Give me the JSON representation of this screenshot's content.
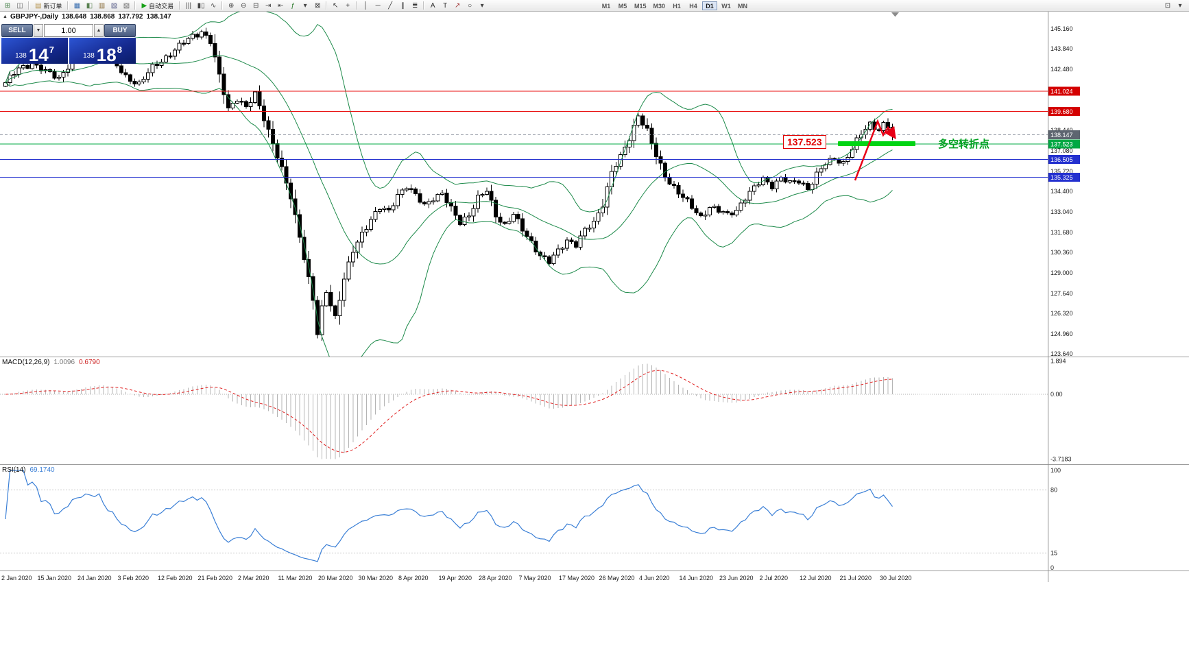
{
  "toolbar": {
    "items": [
      {
        "name": "new-chart-icon",
        "glyph": "⊞",
        "color": "#3f7d42"
      },
      {
        "name": "chart-profiles-icon",
        "glyph": "◫",
        "color": "#666666"
      },
      {
        "name": "sep"
      },
      {
        "name": "new-order-button",
        "glyph": "▤",
        "color": "#b5924a",
        "label": "新订单"
      },
      {
        "name": "sep"
      },
      {
        "name": "market-watch-icon",
        "glyph": "▦",
        "color": "#3a6fb0"
      },
      {
        "name": "data-window-icon",
        "glyph": "◧",
        "color": "#58804f"
      },
      {
        "name": "navigator-icon",
        "glyph": "▥",
        "color": "#8a6d3b"
      },
      {
        "name": "terminal-icon",
        "glyph": "▨",
        "color": "#5a5f8a"
      },
      {
        "name": "strategy-tester-icon",
        "glyph": "▧",
        "color": "#6a6a6a"
      },
      {
        "name": "sep"
      },
      {
        "name": "auto-trading-button",
        "glyph": "▶",
        "color": "#18a018",
        "label": "自动交易"
      },
      {
        "name": "sep"
      },
      {
        "name": "bars-chart-icon",
        "glyph": "|||",
        "color": "#444444"
      },
      {
        "name": "candles-chart-icon",
        "glyph": "▮▯",
        "color": "#444444"
      },
      {
        "name": "line-chart-icon",
        "glyph": "∿",
        "color": "#444444"
      },
      {
        "name": "sep"
      },
      {
        "name": "zoom-in-icon",
        "glyph": "⊕",
        "color": "#444444"
      },
      {
        "name": "zoom-out-icon",
        "glyph": "⊖",
        "color": "#444444"
      },
      {
        "name": "tile-windows-icon",
        "glyph": "⊟",
        "color": "#444444"
      },
      {
        "name": "auto-scroll-icon",
        "glyph": "⇥",
        "color": "#444444"
      },
      {
        "name": "chart-shift-icon",
        "glyph": "⇤",
        "color": "#444444"
      },
      {
        "name": "indicators-icon",
        "glyph": "ƒ",
        "color": "#2a7a2a"
      },
      {
        "name": "periods-dropdown-icon",
        "glyph": "▾",
        "color": "#444444"
      },
      {
        "name": "templates-icon",
        "glyph": "⊠",
        "color": "#444444"
      },
      {
        "name": "sep"
      },
      {
        "name": "cursor-icon",
        "glyph": "↖",
        "color": "#333333"
      },
      {
        "name": "crosshair-icon",
        "glyph": "+",
        "color": "#333333"
      },
      {
        "name": "sep"
      },
      {
        "name": "vertical-line-icon",
        "glyph": "│",
        "color": "#333333"
      },
      {
        "name": "horizontal-line-icon",
        "glyph": "─",
        "color": "#333333"
      },
      {
        "name": "trendline-icon",
        "glyph": "╱",
        "color": "#333333"
      },
      {
        "name": "equidistant-channel-icon",
        "glyph": "∥",
        "color": "#333333"
      },
      {
        "name": "fibonacci-icon",
        "glyph": "≣",
        "color": "#333333"
      },
      {
        "name": "sep"
      },
      {
        "name": "text-icon",
        "glyph": "A",
        "color": "#333333"
      },
      {
        "name": "text-label-icon",
        "glyph": "T",
        "color": "#333333"
      },
      {
        "name": "arrows-icon",
        "glyph": "↗",
        "color": "#a03030"
      },
      {
        "name": "shapes-icon",
        "glyph": "○",
        "color": "#333333"
      },
      {
        "name": "objects-dropdown-icon",
        "glyph": "▾",
        "color": "#444444"
      }
    ],
    "timeframes": [
      {
        "label": "M1",
        "active": false
      },
      {
        "label": "M5",
        "active": false
      },
      {
        "label": "M15",
        "active": false
      },
      {
        "label": "M30",
        "active": false
      },
      {
        "label": "H1",
        "active": false
      },
      {
        "label": "H4",
        "active": false
      },
      {
        "label": "D1",
        "active": true
      },
      {
        "label": "W1",
        "active": false
      },
      {
        "label": "MN",
        "active": false
      }
    ],
    "right_icons": [
      {
        "name": "fullscreen-icon",
        "glyph": "⊡",
        "color": "#444444"
      },
      {
        "name": "more-icon",
        "glyph": "▾",
        "color": "#444444"
      }
    ]
  },
  "chart_header": {
    "symbol": "GBPJPY-,Daily",
    "open": "138.648",
    "high": "138.868",
    "low": "137.792",
    "close": "138.147"
  },
  "one_click": {
    "collapse_glyph": "▲",
    "sell_label": "SELL",
    "buy_label": "BUY",
    "volume": "1.00",
    "spin_down_glyph": "▼",
    "spin_up_glyph": "▲",
    "price_prefix": "138",
    "sell_big": "14",
    "sell_sup": "7",
    "buy_big": "18",
    "buy_sup": "8"
  },
  "price_axis": {
    "plain_labels": [
      "145.160",
      "143.840",
      "142.480",
      "138.440",
      "137.080",
      "135.720",
      "134.400",
      "133.040",
      "131.680",
      "130.360",
      "129.000",
      "127.640",
      "126.320",
      "124.960",
      "123.640"
    ],
    "badges": [
      {
        "text": "141.024",
        "price": 141.024,
        "color": "#d40000"
      },
      {
        "text": "139.680",
        "price": 139.68,
        "color": "#d40000"
      },
      {
        "text": "138.147",
        "price": 138.147,
        "color": "#5d6570"
      },
      {
        "text": "137.523",
        "price": 137.523,
        "color": "#00a843"
      },
      {
        "text": "136.505",
        "price": 136.505,
        "color": "#2330cf"
      },
      {
        "text": "135.325",
        "price": 135.325,
        "color": "#2330cf"
      }
    ]
  },
  "levels": [
    {
      "price": 141.024,
      "color": "#e81010"
    },
    {
      "price": 139.68,
      "color": "#e81010"
    },
    {
      "price": 137.523,
      "color": "#00a843"
    },
    {
      "price": 136.505,
      "color": "#2330cf"
    },
    {
      "price": 135.325,
      "color": "#2330cf"
    }
  ],
  "bid_line": {
    "price": 138.147,
    "color": "#9aa0aa"
  },
  "annotations": {
    "price_box": "137.523",
    "turning_point": "多空转折点",
    "colors": {
      "box": "#e00000",
      "text": "#00a020",
      "bar": "#00d414",
      "arrow": "#e80016"
    }
  },
  "indicators": {
    "bollinger": {
      "color": "#1d8a4a"
    },
    "macd": {
      "title": "MACD(12,26,9)",
      "value": "1.0096",
      "signal_value": "0.6790",
      "max_label": "1.894",
      "zero_label": "0.00",
      "min_label": "-3.7183",
      "histogram_color": "#b4b4b4",
      "signal_color": "#e02020"
    },
    "rsi": {
      "title": "RSI(14)",
      "value": "69.1740",
      "line_color": "#3a7fd6",
      "scale_labels": [
        {
          "text": "100",
          "value": 100,
          "line": false
        },
        {
          "text": "80",
          "value": 80,
          "line": true
        },
        {
          "text": "15",
          "value": 15,
          "line": true
        },
        {
          "text": "0",
          "value": 0,
          "line": false
        }
      ]
    }
  },
  "chart_data": {
    "type": "candlestick",
    "symbol": "GBPJPY",
    "timeframe": "Daily",
    "visible_ohlc": {
      "open": 138.648,
      "high": 138.868,
      "low": 137.792,
      "close": 138.147
    },
    "ylim": [
      123.46,
      146.34
    ],
    "n_candles": 200,
    "x_axis_dates": [
      "2 Jan 2020",
      "15 Jan 2020",
      "24 Jan 2020",
      "3 Feb 2020",
      "12 Feb 2020",
      "21 Feb 2020",
      "2 Mar 2020",
      "11 Mar 2020",
      "20 Mar 2020",
      "30 Mar 2020",
      "8 Apr 2020",
      "19 Apr 2020",
      "28 Apr 2020",
      "7 May 2020",
      "17 May 2020",
      "26 May 2020",
      "4 Jun 2020",
      "14 Jun 2020",
      "23 Jun 2020",
      "2 Jul 2020",
      "12 Jul 2020",
      "21 Jul 2020",
      "30 Jul 2020"
    ],
    "close_path_anchors": [
      [
        0,
        141.6
      ],
      [
        3,
        142.5
      ],
      [
        6,
        142.9
      ],
      [
        9,
        142.3
      ],
      [
        12,
        141.9
      ],
      [
        15,
        143.1
      ],
      [
        18,
        143.8
      ],
      [
        21,
        144.2
      ],
      [
        24,
        143.0
      ],
      [
        27,
        142.0
      ],
      [
        30,
        141.5
      ],
      [
        33,
        142.6
      ],
      [
        36,
        143.3
      ],
      [
        39,
        144.0
      ],
      [
        42,
        144.7
      ],
      [
        44,
        145.0
      ],
      [
        46,
        144.3
      ],
      [
        48,
        142.0
      ],
      [
        50,
        139.9
      ],
      [
        52,
        140.6
      ],
      [
        54,
        139.9
      ],
      [
        56,
        140.8
      ],
      [
        58,
        139.3
      ],
      [
        60,
        137.6
      ],
      [
        62,
        135.8
      ],
      [
        64,
        134.0
      ],
      [
        66,
        131.5
      ],
      [
        68,
        128.6
      ],
      [
        69,
        127.2
      ],
      [
        70,
        124.9
      ],
      [
        71,
        126.6
      ],
      [
        72,
        127.8
      ],
      [
        74,
        126.1
      ],
      [
        76,
        128.6
      ],
      [
        78,
        130.4
      ],
      [
        80,
        131.6
      ],
      [
        82,
        132.6
      ],
      [
        84,
        133.3
      ],
      [
        86,
        133.0
      ],
      [
        88,
        134.2
      ],
      [
        90,
        134.8
      ],
      [
        92,
        134.1
      ],
      [
        94,
        133.4
      ],
      [
        96,
        134.0
      ],
      [
        98,
        134.3
      ],
      [
        100,
        133.2
      ],
      [
        102,
        132.3
      ],
      [
        104,
        132.9
      ],
      [
        106,
        134.0
      ],
      [
        108,
        134.4
      ],
      [
        110,
        132.8
      ],
      [
        112,
        132.2
      ],
      [
        114,
        132.9
      ],
      [
        116,
        131.8
      ],
      [
        118,
        131.0
      ],
      [
        120,
        130.2
      ],
      [
        122,
        129.7
      ],
      [
        124,
        130.4
      ],
      [
        126,
        131.2
      ],
      [
        128,
        130.9
      ],
      [
        130,
        131.8
      ],
      [
        132,
        132.3
      ],
      [
        134,
        133.6
      ],
      [
        136,
        135.7
      ],
      [
        138,
        136.6
      ],
      [
        140,
        137.9
      ],
      [
        142,
        139.5
      ],
      [
        144,
        138.4
      ],
      [
        146,
        136.7
      ],
      [
        148,
        135.4
      ],
      [
        150,
        134.7
      ],
      [
        152,
        134.0
      ],
      [
        154,
        133.3
      ],
      [
        156,
        132.7
      ],
      [
        158,
        133.4
      ],
      [
        160,
        133.1
      ],
      [
        162,
        132.8
      ],
      [
        164,
        133.2
      ],
      [
        166,
        134.0
      ],
      [
        168,
        134.6
      ],
      [
        170,
        135.2
      ],
      [
        172,
        134.8
      ],
      [
        174,
        135.3
      ],
      [
        176,
        134.9
      ],
      [
        178,
        135.1
      ],
      [
        180,
        134.6
      ],
      [
        182,
        135.5
      ],
      [
        184,
        136.2
      ],
      [
        186,
        136.6
      ],
      [
        188,
        136.3
      ],
      [
        190,
        137.2
      ],
      [
        192,
        138.2
      ],
      [
        194,
        138.9
      ],
      [
        196,
        138.5
      ],
      [
        197,
        138.8
      ],
      [
        198,
        138.65
      ],
      [
        199,
        138.147
      ]
    ],
    "horizontal_levels": [
      141.024,
      139.68,
      137.523,
      136.505,
      135.325
    ],
    "indicator_readings": {
      "macd": {
        "params": "12,26,9",
        "current": 1.0096,
        "signal": 0.679,
        "scale": [
          -3.7183,
          1.894
        ]
      },
      "rsi": {
        "params": "14",
        "current": 69.174,
        "scale": [
          0,
          100
        ],
        "levels": [
          15,
          80
        ]
      },
      "bollinger": {
        "period": 20,
        "deviation": 2
      }
    }
  }
}
